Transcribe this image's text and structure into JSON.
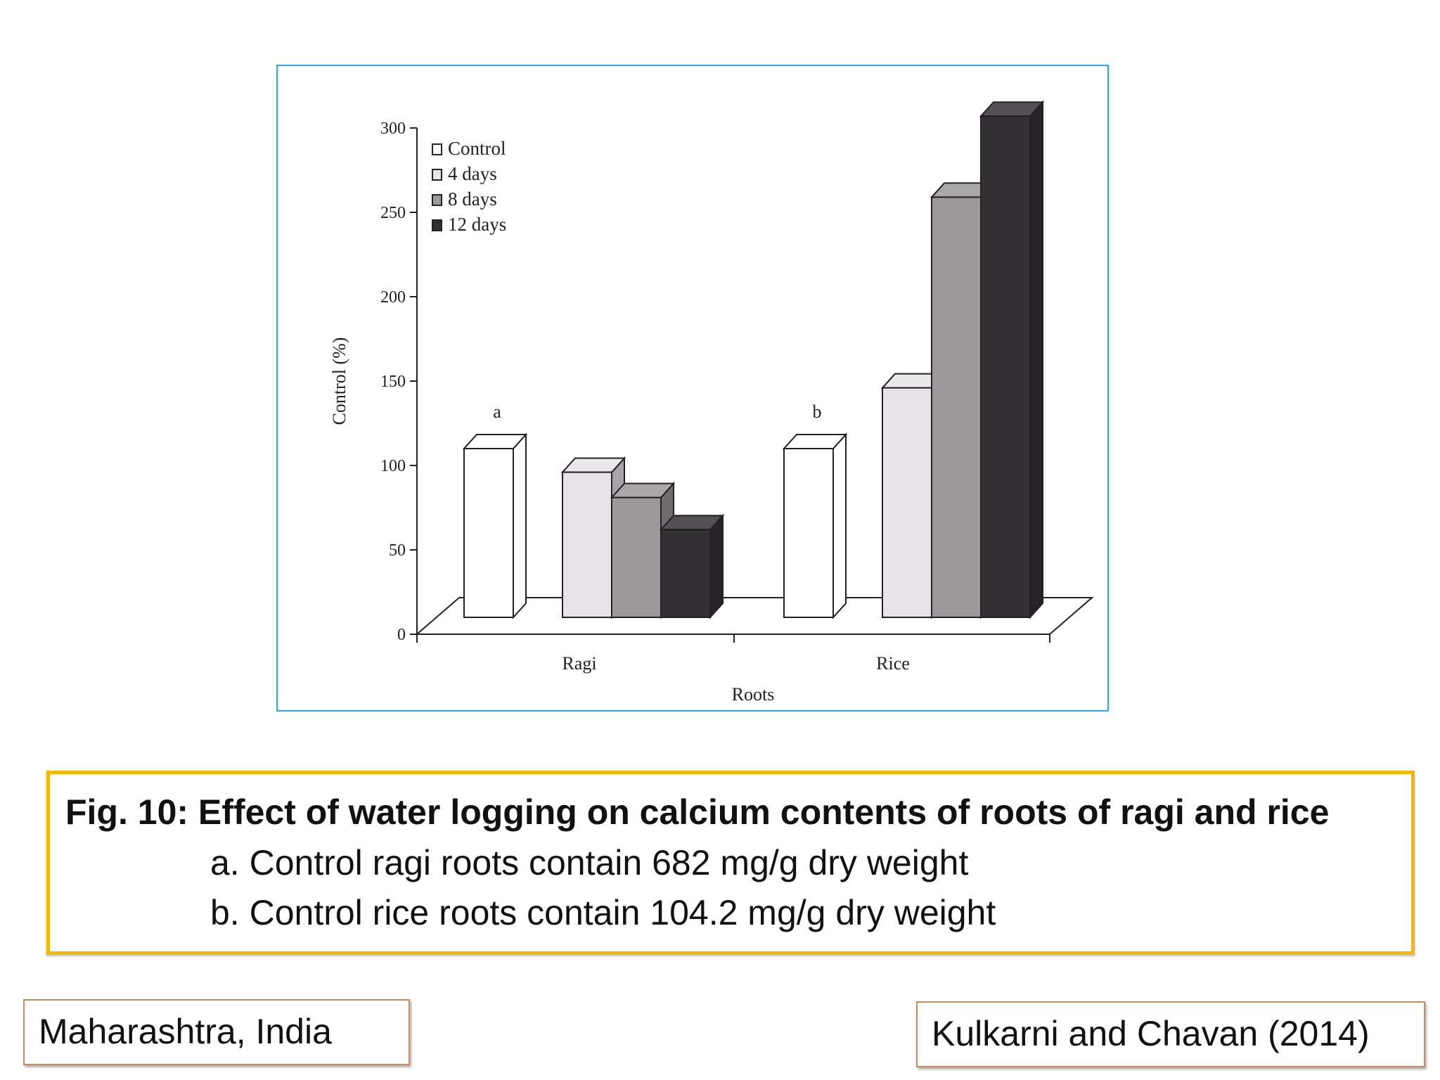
{
  "chart_data": {
    "type": "bar",
    "title": "",
    "xlabel": "Roots",
    "ylabel": "Control (%)",
    "ylim": [
      0,
      300
    ],
    "yticks": [
      0,
      50,
      100,
      150,
      200,
      250,
      300
    ],
    "categories": [
      "Ragi",
      "Rice"
    ],
    "series": [
      {
        "name": "Control",
        "values": [
          100,
          100
        ],
        "color": "#ffffff"
      },
      {
        "name": "4 days",
        "values": [
          86,
          136
        ],
        "color": "#e6e4e6"
      },
      {
        "name": "8 days",
        "values": [
          71,
          249
        ],
        "color": "#9a9899"
      },
      {
        "name": "12 days",
        "values": [
          52,
          297
        ],
        "color": "#333133"
      }
    ],
    "annotations": [
      {
        "text": "a",
        "category": "Ragi",
        "series": "Control"
      },
      {
        "text": "b",
        "category": "Rice",
        "series": "Control"
      }
    ],
    "legend_position": "top-left",
    "grid": false,
    "style": "3d"
  },
  "caption": {
    "title": "Fig. 10: Effect of water logging on calcium  contents of roots of ragi and rice",
    "line_a": "a. Control ragi roots contain 682 mg/g dry weight",
    "line_b": "b. Control rice roots contain 104.2 mg/g dry weight"
  },
  "location": "Maharashtra, India",
  "citation": "Kulkarni and Chavan (2014)",
  "colors": {
    "frame_border": "#29abe2",
    "caption_border": "#f5b800",
    "tag_border": "#d08a5a"
  }
}
